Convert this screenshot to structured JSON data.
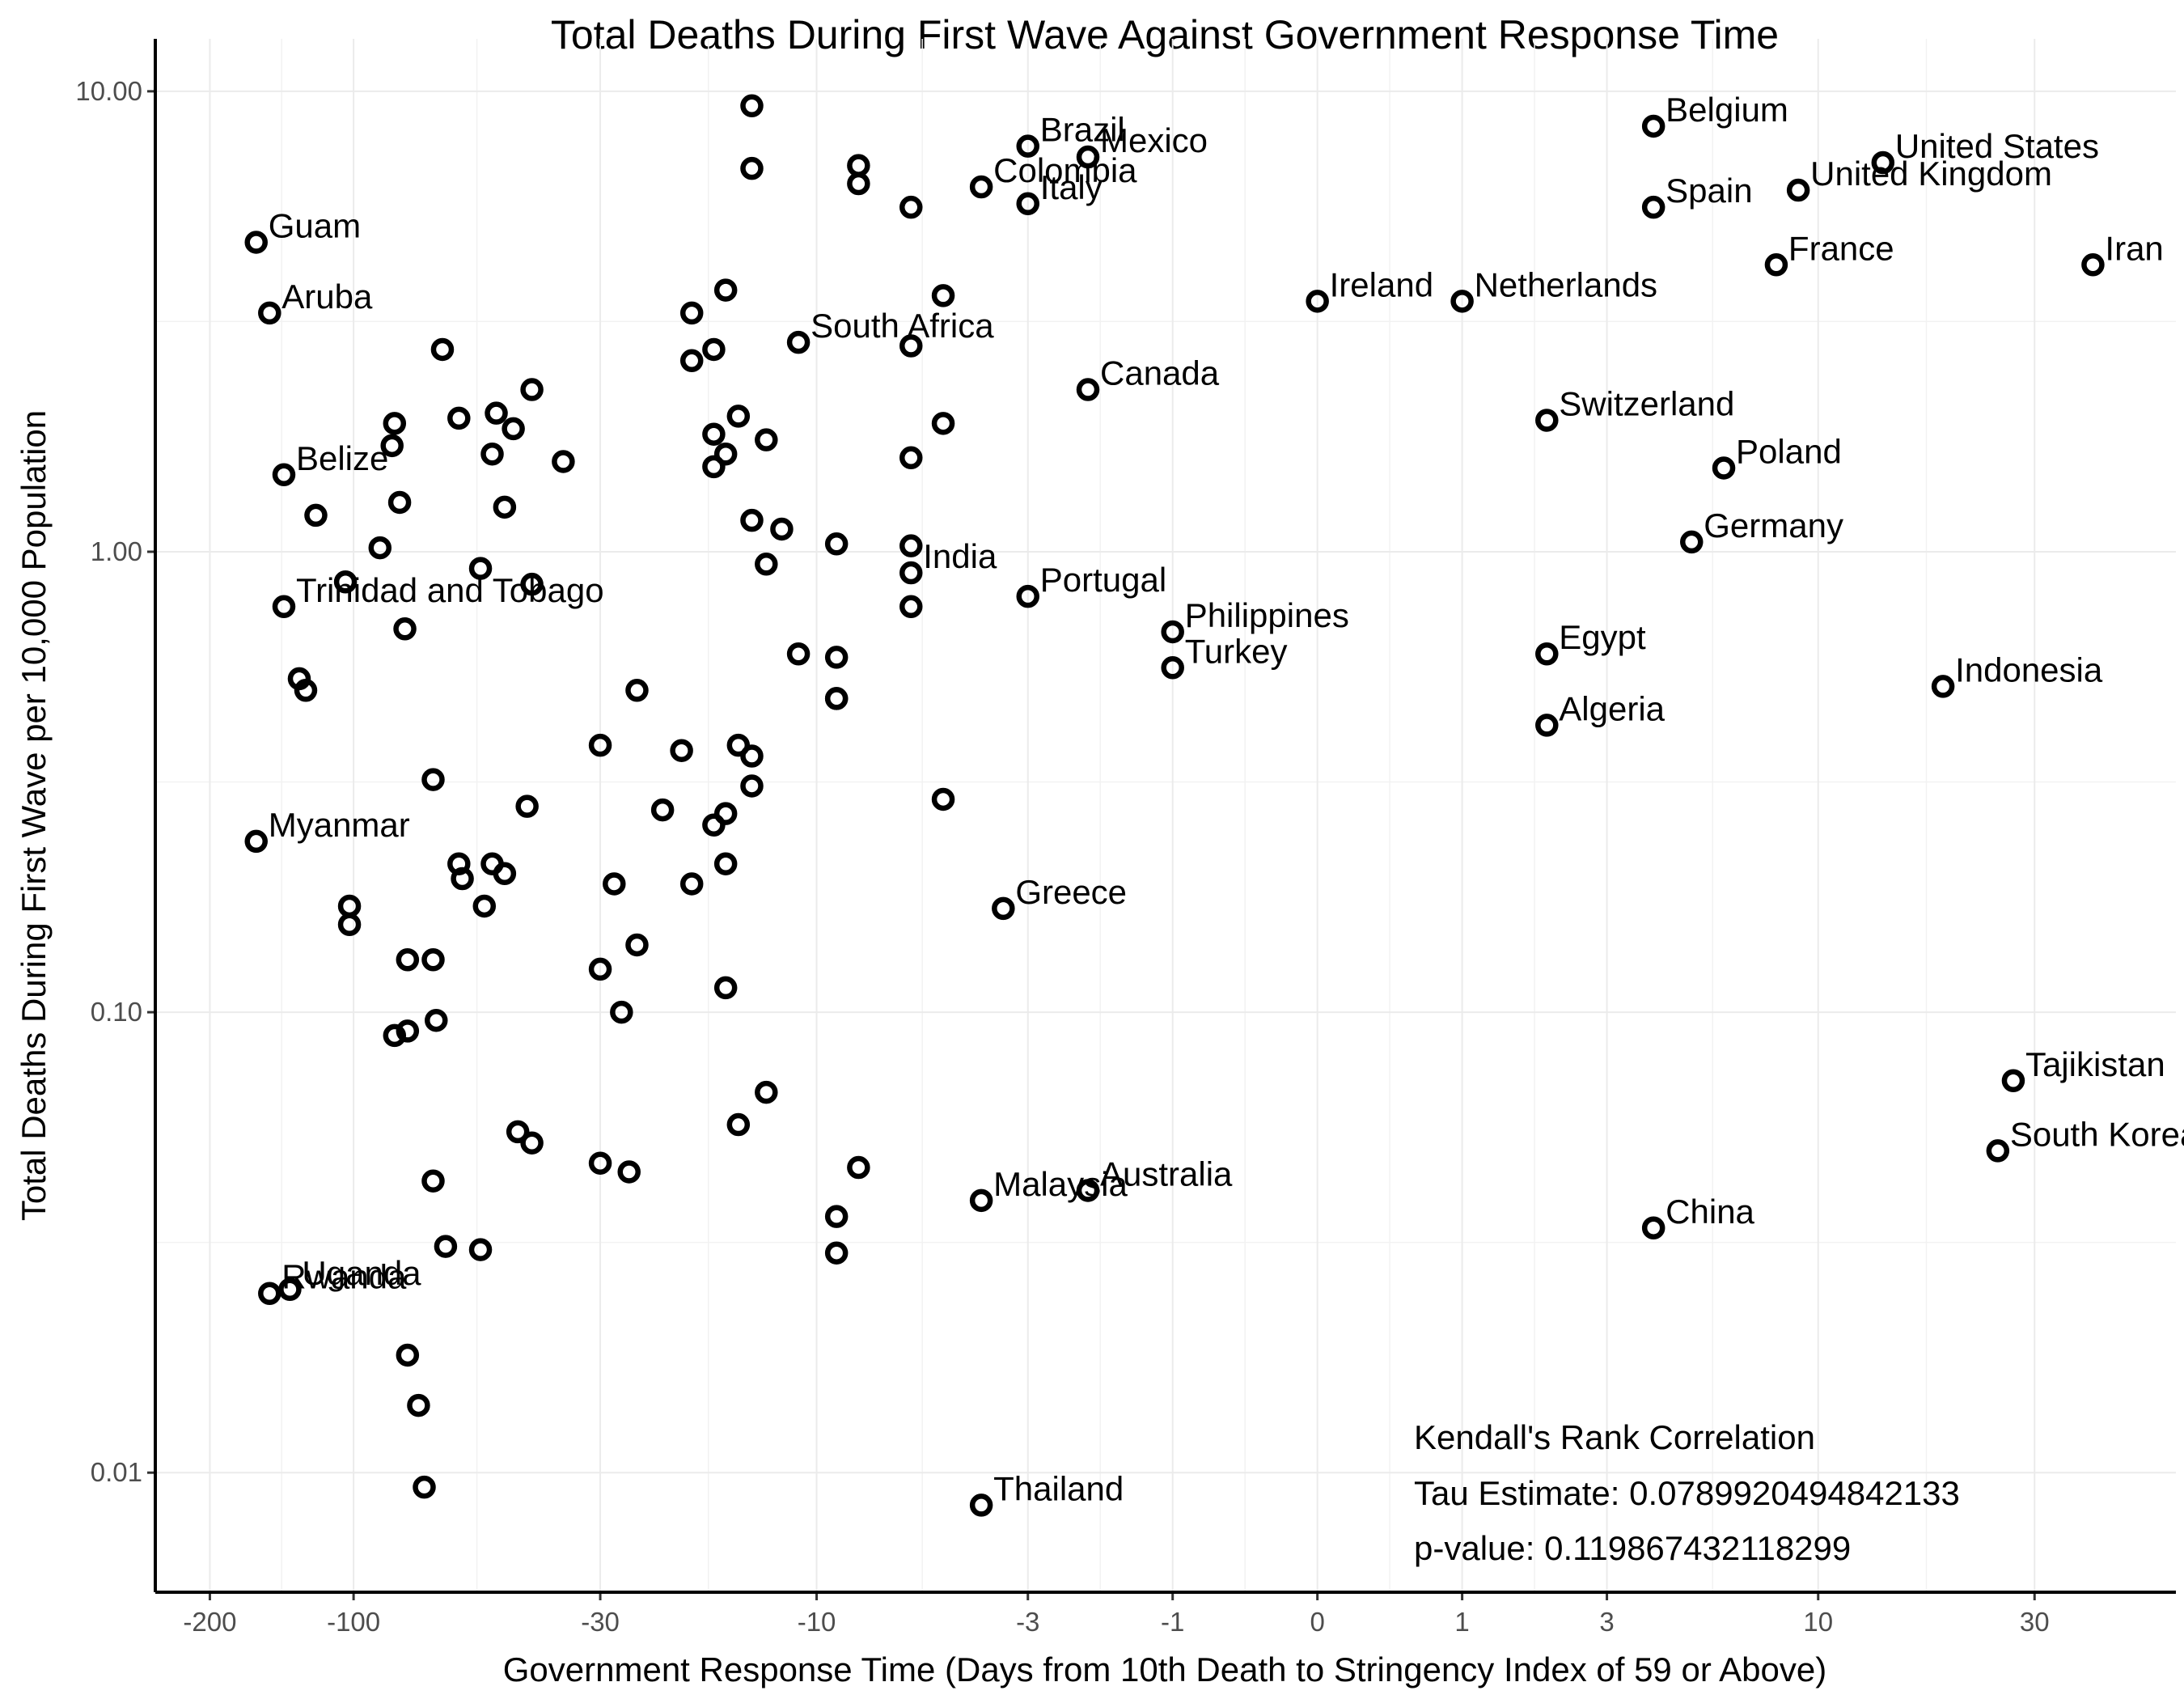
{
  "chart_data": {
    "type": "scatter",
    "title": "Total Deaths During First Wave Against Government Response Time",
    "xlabel": "Government Response Time (Days from 10th Death to Stringency Index of 59 or Above)",
    "ylabel": "Total Deaths During First Wave per 10,000 Population",
    "x_scale": "pseudo-log",
    "y_scale": "log10",
    "xlim": [
      -260,
      60
    ],
    "ylim": [
      0.0055,
      13
    ],
    "grid": true,
    "x_ticks": [
      -200,
      -100,
      -30,
      -10,
      -3,
      -1,
      0,
      1,
      3,
      10,
      30
    ],
    "x_tick_labels": [
      "-200",
      "-100",
      "-30",
      "-10",
      "-3",
      "-1",
      "0",
      "1",
      "3",
      "10",
      "30"
    ],
    "y_ticks": [
      0.01,
      0.1,
      1,
      10
    ],
    "y_tick_labels": [
      "0.01",
      "0.10",
      "1.00",
      "10.00"
    ],
    "annotation": {
      "line1": "Kendall's Rank Correlation",
      "line2": "Tau Estimate: 0.0789920494842133",
      "line3": "p-value: 0.119867432118299"
    },
    "labeled_points": [
      {
        "label": "Guam",
        "x": -160,
        "y": 4.7
      },
      {
        "label": "Aruba",
        "x": -150,
        "y": 3.3
      },
      {
        "label": "Belize",
        "x": -140,
        "y": 1.47
      },
      {
        "label": "Trinidad and Tobago",
        "x": -140,
        "y": 0.76
      },
      {
        "label": "Myanmar",
        "x": -160,
        "y": 0.235
      },
      {
        "label": "Uganda",
        "x": -136,
        "y": 0.025
      },
      {
        "label": "Rwanda",
        "x": -150,
        "y": 0.0245
      },
      {
        "label": "South Africa",
        "x": -11,
        "y": 2.85
      },
      {
        "label": "India",
        "x": -6,
        "y": 0.9
      },
      {
        "label": "Brazil",
        "x": -3,
        "y": 7.6
      },
      {
        "label": "Mexico",
        "x": -2,
        "y": 7.2
      },
      {
        "label": "Colombia",
        "x": -4,
        "y": 6.2
      },
      {
        "label": "Italy",
        "x": -3,
        "y": 5.7
      },
      {
        "label": "Canada",
        "x": -2,
        "y": 2.25
      },
      {
        "label": "Portugal",
        "x": -3,
        "y": 0.8
      },
      {
        "label": "Greece",
        "x": -3.5,
        "y": 0.168
      },
      {
        "label": "Malaysia",
        "x": -4,
        "y": 0.039
      },
      {
        "label": "Australia",
        "x": -2,
        "y": 0.041
      },
      {
        "label": "Thailand",
        "x": -4,
        "y": 0.0085
      },
      {
        "label": "Philippines",
        "x": -1,
        "y": 0.67
      },
      {
        "label": "Turkey",
        "x": -1,
        "y": 0.56
      },
      {
        "label": "Ireland",
        "x": 0,
        "y": 3.5
      },
      {
        "label": "Netherlands",
        "x": 1,
        "y": 3.5
      },
      {
        "label": "Switzerland",
        "x": 2,
        "y": 1.93
      },
      {
        "label": "Egypt",
        "x": 2,
        "y": 0.6
      },
      {
        "label": "Algeria",
        "x": 2,
        "y": 0.42
      },
      {
        "label": "Belgium",
        "x": 4,
        "y": 8.4
      },
      {
        "label": "Spain",
        "x": 4,
        "y": 5.6
      },
      {
        "label": "China",
        "x": 4,
        "y": 0.034
      },
      {
        "label": "Germany",
        "x": 5,
        "y": 1.05
      },
      {
        "label": "Poland",
        "x": 6,
        "y": 1.52
      },
      {
        "label": "France",
        "x": 8,
        "y": 4.2
      },
      {
        "label": "United Kingdom",
        "x": 9,
        "y": 6.1
      },
      {
        "label": "United States",
        "x": 14,
        "y": 7.0
      },
      {
        "label": "Indonesia",
        "x": 19,
        "y": 0.51
      },
      {
        "label": "South Korea",
        "x": 25,
        "y": 0.05
      },
      {
        "label": "Tajikistan",
        "x": 27,
        "y": 0.071
      },
      {
        "label": "Iran",
        "x": 40,
        "y": 4.2
      }
    ],
    "unlabeled_points": [
      {
        "x": -14,
        "y": 9.3
      },
      {
        "x": -14,
        "y": 6.8
      },
      {
        "x": -8,
        "y": 6.9
      },
      {
        "x": -8,
        "y": 6.3
      },
      {
        "x": -6,
        "y": 5.6
      },
      {
        "x": -5,
        "y": 3.6
      },
      {
        "x": -16,
        "y": 3.7
      },
      {
        "x": -19,
        "y": 3.3
      },
      {
        "x": -17,
        "y": 2.75
      },
      {
        "x": -19,
        "y": 2.6
      },
      {
        "x": -6,
        "y": 2.8
      },
      {
        "x": -15,
        "y": 1.97
      },
      {
        "x": -17,
        "y": 1.8
      },
      {
        "x": -13,
        "y": 1.75
      },
      {
        "x": -16,
        "y": 1.63
      },
      {
        "x": -17,
        "y": 1.53
      },
      {
        "x": -6,
        "y": 1.6
      },
      {
        "x": -5,
        "y": 1.9
      },
      {
        "x": -14,
        "y": 1.17
      },
      {
        "x": -12,
        "y": 1.12
      },
      {
        "x": -9,
        "y": 1.04
      },
      {
        "x": -6,
        "y": 1.03
      },
      {
        "x": -13,
        "y": 0.94
      },
      {
        "x": -6,
        "y": 0.76
      },
      {
        "x": -11,
        "y": 0.6
      },
      {
        "x": -9,
        "y": 0.59
      },
      {
        "x": -9,
        "y": 0.48
      },
      {
        "x": -9,
        "y": 0.48
      },
      {
        "x": -5,
        "y": 0.29
      },
      {
        "x": -15,
        "y": 0.38
      },
      {
        "x": -14,
        "y": 0.36
      },
      {
        "x": -14,
        "y": 0.31
      },
      {
        "x": -16,
        "y": 0.27
      },
      {
        "x": -17,
        "y": 0.255
      },
      {
        "x": -16,
        "y": 0.21
      },
      {
        "x": -20,
        "y": 0.37
      },
      {
        "x": -22,
        "y": 0.275
      },
      {
        "x": -19,
        "y": 0.19
      },
      {
        "x": -16,
        "y": 0.113
      },
      {
        "x": -15,
        "y": 0.057
      },
      {
        "x": -13,
        "y": 0.067
      },
      {
        "x": -8,
        "y": 0.046
      },
      {
        "x": -9,
        "y": 0.036
      },
      {
        "x": -9,
        "y": 0.03
      },
      {
        "x": -65,
        "y": 2.75
      },
      {
        "x": -60,
        "y": 1.95
      },
      {
        "x": -50,
        "y": 2.0
      },
      {
        "x": -46,
        "y": 1.85
      },
      {
        "x": -42,
        "y": 2.25
      },
      {
        "x": -51,
        "y": 1.63
      },
      {
        "x": -48,
        "y": 1.25
      },
      {
        "x": -36,
        "y": 1.57
      },
      {
        "x": -82,
        "y": 1.9
      },
      {
        "x": -83,
        "y": 1.7
      },
      {
        "x": -80,
        "y": 1.28
      },
      {
        "x": -88,
        "y": 1.02
      },
      {
        "x": -120,
        "y": 1.2
      },
      {
        "x": -104,
        "y": 0.86
      },
      {
        "x": -54,
        "y": 0.92
      },
      {
        "x": -42,
        "y": 0.85
      },
      {
        "x": -78,
        "y": 0.68
      },
      {
        "x": -130,
        "y": 0.53
      },
      {
        "x": -126,
        "y": 0.5
      },
      {
        "x": -30,
        "y": 0.38
      },
      {
        "x": -25,
        "y": 0.5
      },
      {
        "x": -43,
        "y": 0.28
      },
      {
        "x": -68,
        "y": 0.32
      },
      {
        "x": -60,
        "y": 0.21
      },
      {
        "x": -59,
        "y": 0.195
      },
      {
        "x": -51,
        "y": 0.21
      },
      {
        "x": -48,
        "y": 0.2
      },
      {
        "x": -53,
        "y": 0.17
      },
      {
        "x": -28,
        "y": 0.19
      },
      {
        "x": -25,
        "y": 0.14
      },
      {
        "x": -30,
        "y": 0.124
      },
      {
        "x": -27,
        "y": 0.1
      },
      {
        "x": -102,
        "y": 0.17
      },
      {
        "x": -102,
        "y": 0.155
      },
      {
        "x": -77,
        "y": 0.13
      },
      {
        "x": -68,
        "y": 0.13
      },
      {
        "x": -82,
        "y": 0.089
      },
      {
        "x": -77,
        "y": 0.091
      },
      {
        "x": -67,
        "y": 0.096
      },
      {
        "x": -45,
        "y": 0.055
      },
      {
        "x": -42,
        "y": 0.052
      },
      {
        "x": -30,
        "y": 0.047
      },
      {
        "x": -26,
        "y": 0.045
      },
      {
        "x": -68,
        "y": 0.043
      },
      {
        "x": -64,
        "y": 0.031
      },
      {
        "x": -54,
        "y": 0.0305
      },
      {
        "x": -77,
        "y": 0.018
      },
      {
        "x": -73,
        "y": 0.014
      },
      {
        "x": -71,
        "y": 0.0093
      }
    ]
  }
}
